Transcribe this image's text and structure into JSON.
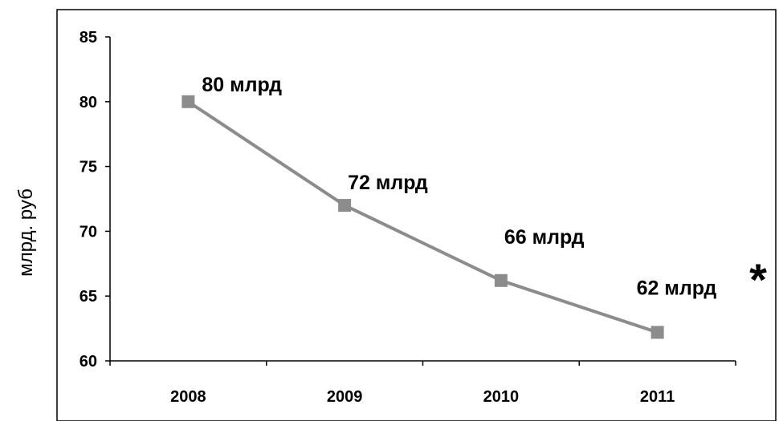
{
  "chart_data": {
    "type": "line",
    "categories": [
      "2008",
      "2009",
      "2010",
      "2011"
    ],
    "series": [
      {
        "values": [
          80,
          72,
          66.2,
          62.2
        ],
        "color": "#8c8c8c",
        "marker": "square"
      }
    ],
    "data_labels": [
      "80 млрд",
      "72 млрд",
      "66 млрд",
      "62 млрд"
    ],
    "ylabel": "млрд. руб",
    "xlabel": "",
    "ylim": [
      60,
      85
    ],
    "yticks": [
      60,
      65,
      70,
      75,
      80,
      85
    ],
    "grid": false,
    "annotation": "*"
  }
}
